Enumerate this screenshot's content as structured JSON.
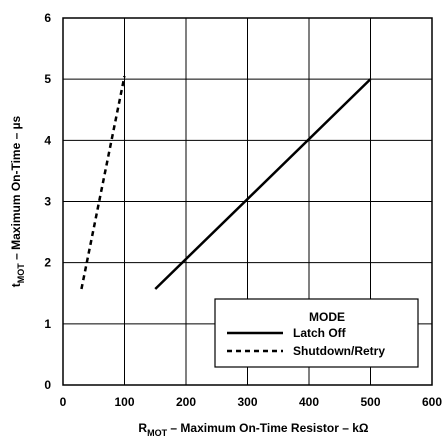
{
  "chart_data": {
    "type": "line",
    "xlabel": {
      "symbol": "R",
      "subscript": "MOT",
      "text": " – Maximum On-Time Resistor – kΩ"
    },
    "ylabel": {
      "symbol": "t",
      "subscript": "MOT",
      "text": " – Maximum On-Time – µs"
    },
    "xlim": [
      0,
      600
    ],
    "ylim": [
      0,
      6
    ],
    "xticks": [
      0,
      100,
      200,
      300,
      400,
      500,
      600
    ],
    "yticks": [
      0,
      1,
      2,
      3,
      4,
      5,
      6
    ],
    "grid": true,
    "legend": {
      "title": "MODE",
      "placement": "bottom-right"
    },
    "series": [
      {
        "name": "Latch Off",
        "style": "solid",
        "color": "#000000",
        "x": [
          150,
          500
        ],
        "y": [
          1.57,
          5.0
        ]
      },
      {
        "name": "Shutdown/Retry",
        "style": "dashed",
        "color": "#000000",
        "x": [
          30,
          100
        ],
        "y": [
          1.57,
          5.05
        ]
      }
    ]
  }
}
